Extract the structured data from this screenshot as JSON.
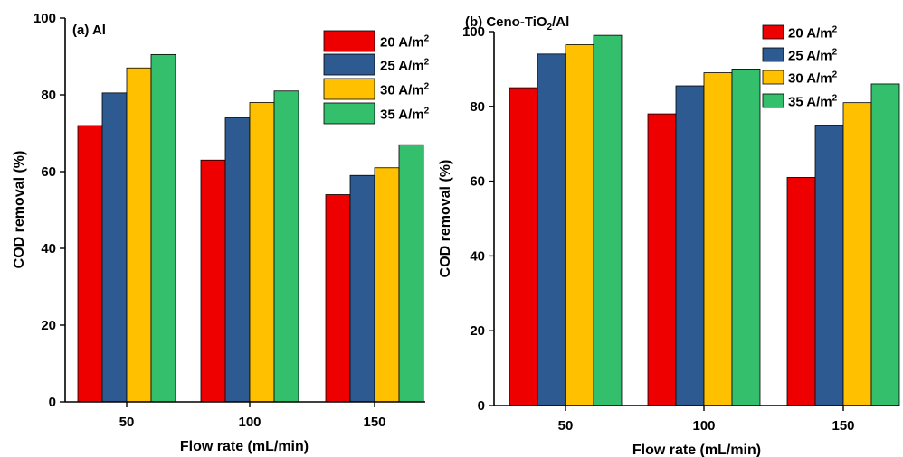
{
  "chart_data": [
    {
      "type": "bar",
      "panel_label": "(a) Al",
      "categories": [
        "50",
        "100",
        "150"
      ],
      "xlabel": "Flow rate (mL/min)",
      "ylabel": "COD removal (%)",
      "ylim": [
        0,
        100
      ],
      "yticks": [
        "0",
        "20",
        "40",
        "60",
        "80",
        "100"
      ],
      "legend_position": "top-right",
      "series": [
        {
          "name": "20 A/m2",
          "color": "#ee0000",
          "values": [
            72,
            63,
            54
          ]
        },
        {
          "name": "25 A/m2",
          "color": "#2e5a92",
          "values": [
            80.5,
            74,
            59
          ]
        },
        {
          "name": "30 A/m2",
          "color": "#ffc000",
          "values": [
            87,
            78,
            61
          ]
        },
        {
          "name": "35 A/m2",
          "color": "#33bf6b",
          "values": [
            90.5,
            81,
            67
          ]
        }
      ]
    },
    {
      "type": "bar",
      "panel_label": "(b) Ceno-TiO2/Al",
      "categories": [
        "50",
        "100",
        "150"
      ],
      "xlabel": "Flow rate (mL/min)",
      "ylabel": "COD removal (%)",
      "ylim": [
        0,
        100
      ],
      "yticks": [
        "0",
        "20",
        "40",
        "60",
        "80",
        "100"
      ],
      "legend_position": "top-right",
      "series": [
        {
          "name": "20 A/m2",
          "color": "#ee0000",
          "values": [
            85,
            78,
            61
          ]
        },
        {
          "name": "25 A/m2",
          "color": "#2e5a92",
          "values": [
            94,
            85.5,
            75
          ]
        },
        {
          "name": "30 A/m2",
          "color": "#ffc000",
          "values": [
            96.5,
            89,
            81
          ]
        },
        {
          "name": "35 A/m2",
          "color": "#33bf6b",
          "values": [
            99,
            90,
            86
          ]
        }
      ]
    }
  ]
}
